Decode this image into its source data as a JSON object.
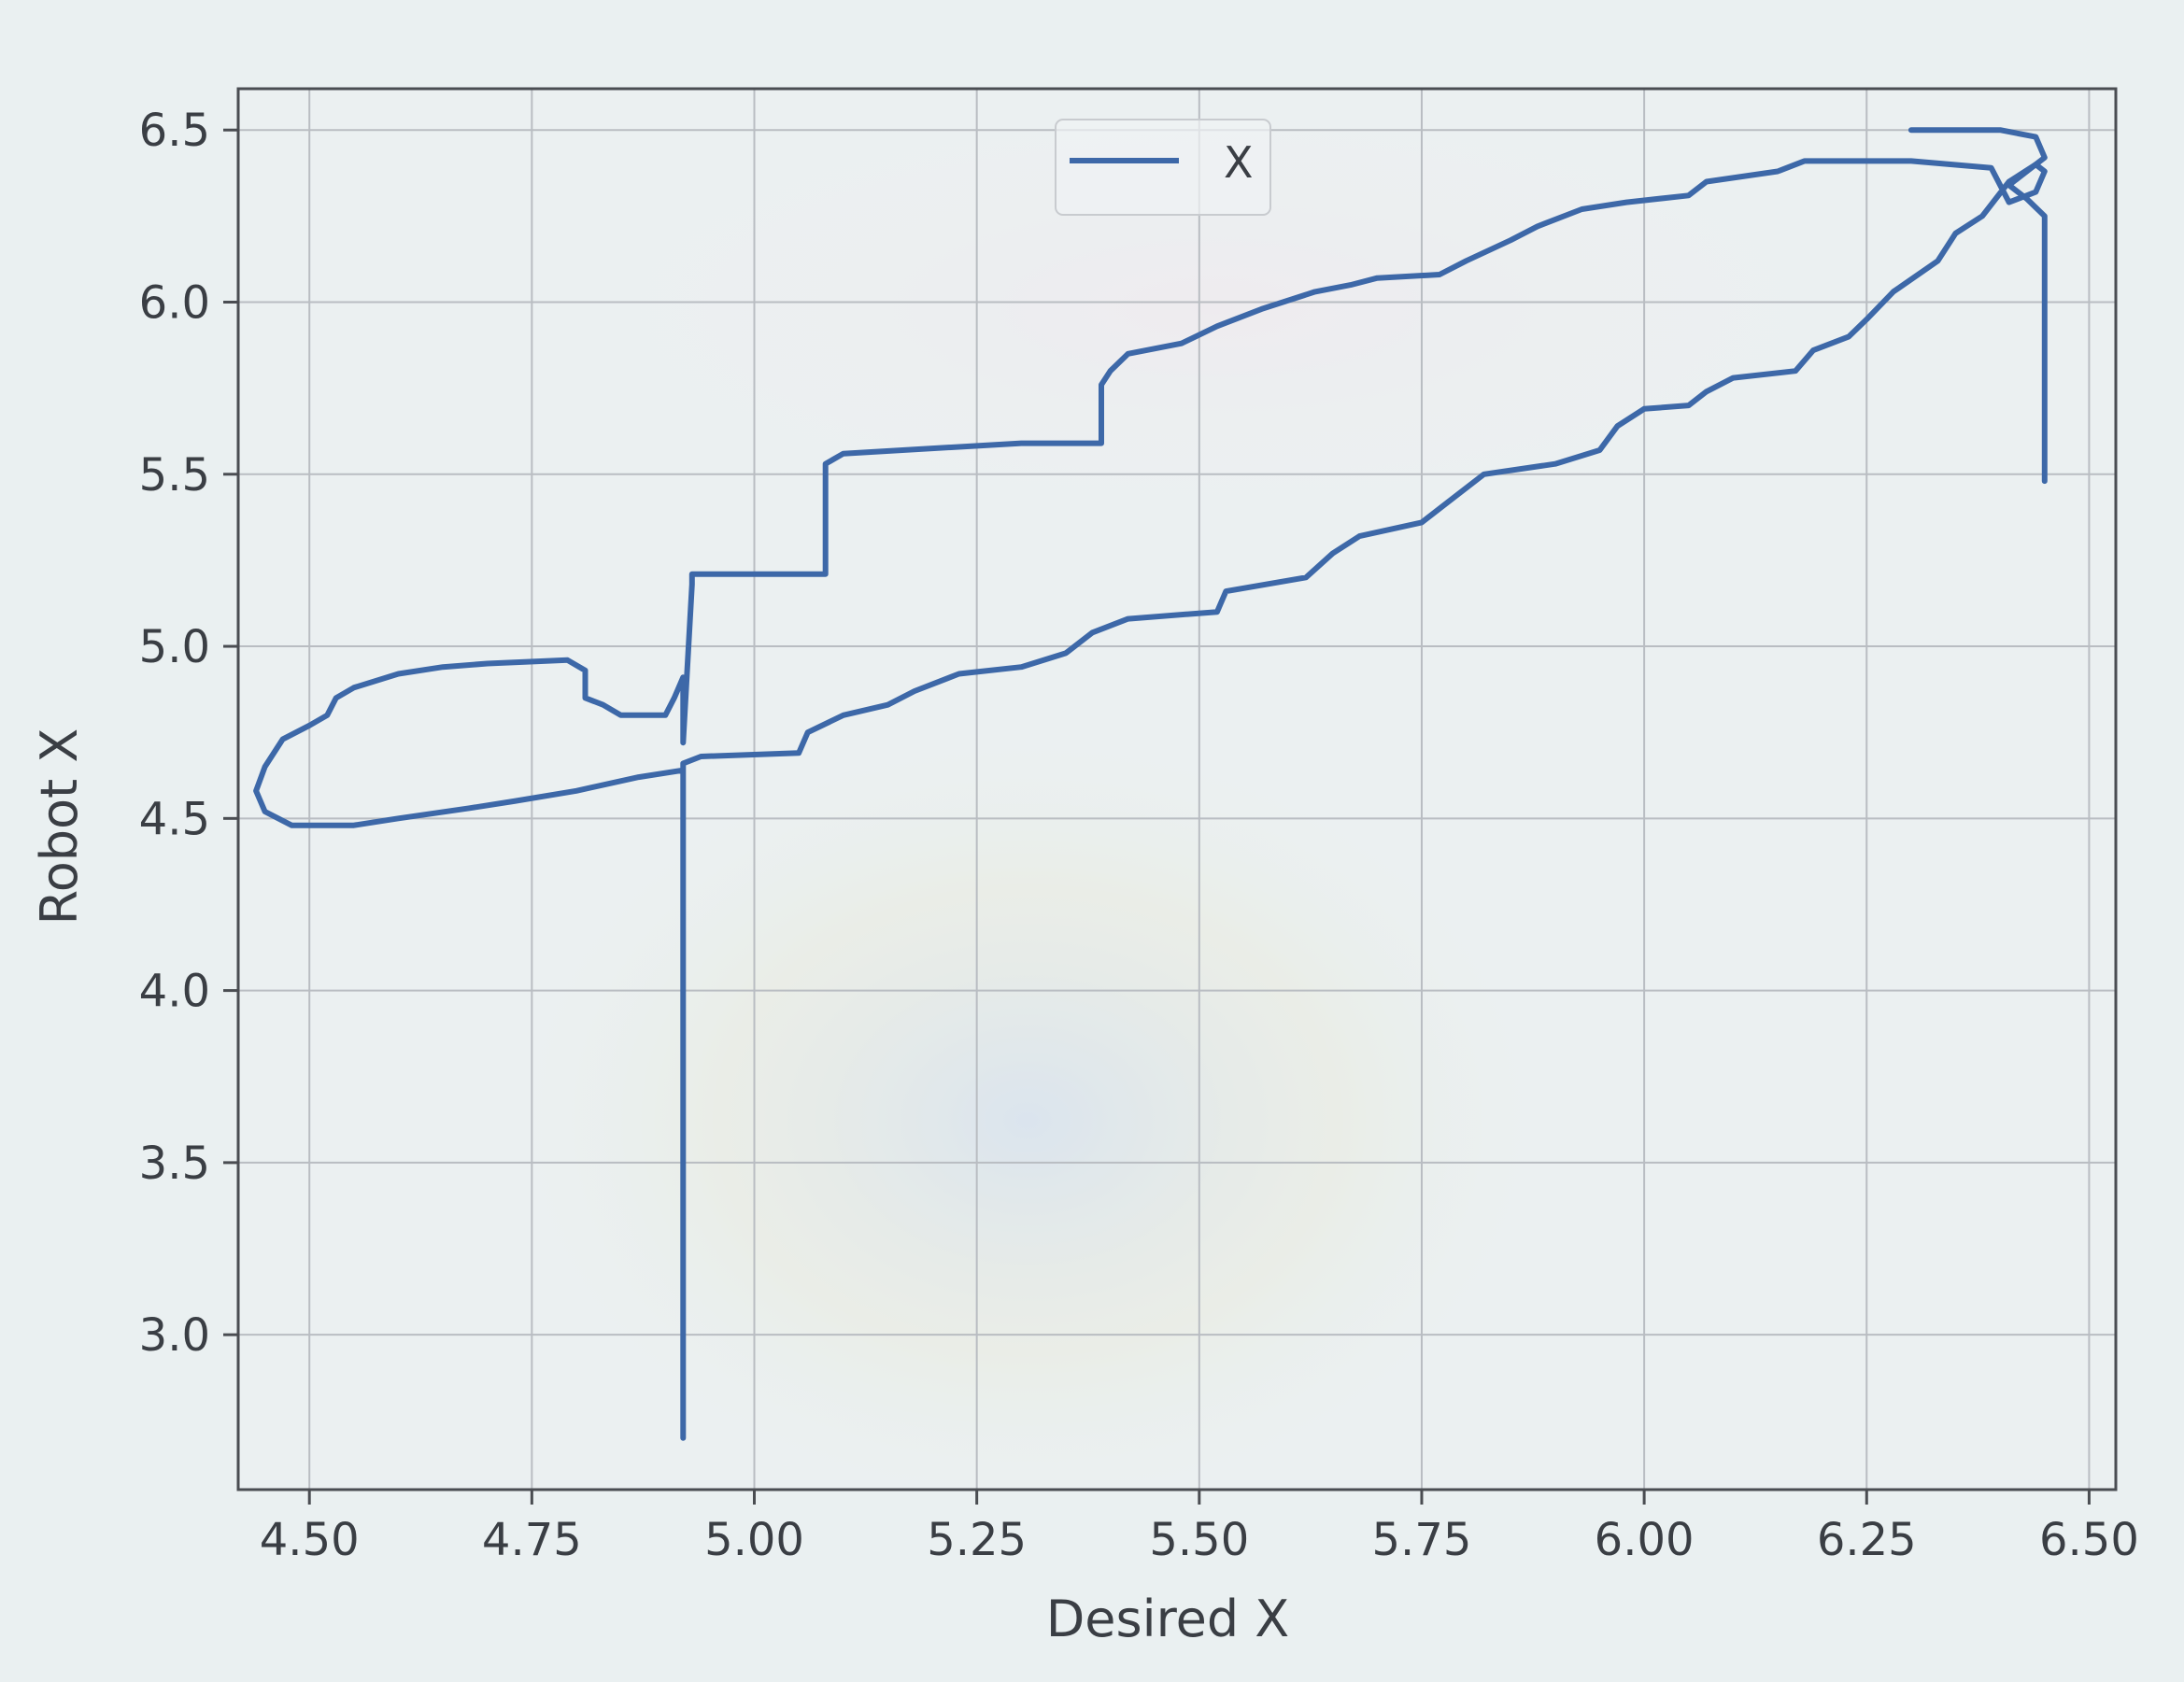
{
  "chart_data": {
    "type": "line",
    "title": "",
    "xlabel": "Desired X",
    "ylabel": "Robot X",
    "xlim": [
      4.42,
      6.53
    ],
    "ylim": [
      2.55,
      6.62
    ],
    "xticks": [
      "4.50",
      "4.75",
      "5.00",
      "5.25",
      "5.50",
      "5.75",
      "6.00",
      "6.25",
      "6.50"
    ],
    "yticks": [
      "3.0",
      "3.5",
      "4.0",
      "4.5",
      "5.0",
      "5.5",
      "6.0",
      "6.5"
    ],
    "grid": true,
    "legend_placement": "upper center",
    "colors": {
      "line": "#3d68a8",
      "grid": "#b9bdc2",
      "axes": "#4a4d52"
    },
    "series": [
      {
        "name": "X",
        "points": [
          [
            4.92,
            2.7
          ],
          [
            4.92,
            4.66
          ],
          [
            4.94,
            4.68
          ],
          [
            5.05,
            4.69
          ],
          [
            5.06,
            4.75
          ],
          [
            5.1,
            4.8
          ],
          [
            5.15,
            4.83
          ],
          [
            5.18,
            4.87
          ],
          [
            5.23,
            4.92
          ],
          [
            5.3,
            4.94
          ],
          [
            5.35,
            4.98
          ],
          [
            5.38,
            5.04
          ],
          [
            5.42,
            5.08
          ],
          [
            5.52,
            5.1
          ],
          [
            5.53,
            5.16
          ],
          [
            5.62,
            5.2
          ],
          [
            5.65,
            5.27
          ],
          [
            5.68,
            5.32
          ],
          [
            5.75,
            5.36
          ],
          [
            5.78,
            5.42
          ],
          [
            5.82,
            5.5
          ],
          [
            5.9,
            5.53
          ],
          [
            5.95,
            5.57
          ],
          [
            5.97,
            5.64
          ],
          [
            6.0,
            5.69
          ],
          [
            6.05,
            5.7
          ],
          [
            6.07,
            5.74
          ],
          [
            6.1,
            5.78
          ],
          [
            6.17,
            5.8
          ],
          [
            6.19,
            5.86
          ],
          [
            6.23,
            5.9
          ],
          [
            6.25,
            5.95
          ],
          [
            6.28,
            6.03
          ],
          [
            6.33,
            6.12
          ],
          [
            6.35,
            6.2
          ],
          [
            6.38,
            6.25
          ],
          [
            6.41,
            6.35
          ],
          [
            6.44,
            6.4
          ],
          [
            6.45,
            6.38
          ],
          [
            6.44,
            6.32
          ],
          [
            6.41,
            6.29
          ],
          [
            6.39,
            6.39
          ],
          [
            6.3,
            6.41
          ],
          [
            6.18,
            6.41
          ],
          [
            6.15,
            6.38
          ],
          [
            6.07,
            6.35
          ],
          [
            6.05,
            6.31
          ],
          [
            5.98,
            6.29
          ],
          [
            5.93,
            6.27
          ],
          [
            5.88,
            6.22
          ],
          [
            5.85,
            6.18
          ],
          [
            5.8,
            6.12
          ],
          [
            5.77,
            6.08
          ],
          [
            5.7,
            6.07
          ],
          [
            5.67,
            6.05
          ],
          [
            5.63,
            6.03
          ],
          [
            5.57,
            5.98
          ],
          [
            5.52,
            5.93
          ],
          [
            5.48,
            5.88
          ],
          [
            5.42,
            5.85
          ],
          [
            5.4,
            5.8
          ],
          [
            5.39,
            5.76
          ],
          [
            5.39,
            5.59
          ],
          [
            5.3,
            5.59
          ],
          [
            5.1,
            5.56
          ],
          [
            5.08,
            5.53
          ],
          [
            5.08,
            5.21
          ],
          [
            4.93,
            5.21
          ],
          [
            4.93,
            5.18
          ],
          [
            4.92,
            4.72
          ],
          [
            4.92,
            4.91
          ],
          [
            4.91,
            4.85
          ],
          [
            4.9,
            4.8
          ],
          [
            4.85,
            4.8
          ],
          [
            4.83,
            4.83
          ],
          [
            4.81,
            4.85
          ],
          [
            4.81,
            4.93
          ],
          [
            4.79,
            4.96
          ],
          [
            4.7,
            4.95
          ],
          [
            4.65,
            4.94
          ],
          [
            4.6,
            4.92
          ],
          [
            4.55,
            4.88
          ],
          [
            4.53,
            4.85
          ],
          [
            4.52,
            4.8
          ],
          [
            4.5,
            4.77
          ],
          [
            4.47,
            4.73
          ],
          [
            4.45,
            4.65
          ],
          [
            4.44,
            4.58
          ],
          [
            4.45,
            4.52
          ],
          [
            4.48,
            4.48
          ],
          [
            4.55,
            4.48
          ],
          [
            4.6,
            4.5
          ],
          [
            4.68,
            4.53
          ],
          [
            4.73,
            4.55
          ],
          [
            4.8,
            4.58
          ],
          [
            4.87,
            4.62
          ],
          [
            4.92,
            4.64
          ]
        ]
      }
    ],
    "extra_segments": [
      [
        [
          6.45,
          5.48
        ],
        [
          6.45,
          6.25
        ],
        [
          6.43,
          6.3
        ],
        [
          6.41,
          6.34
        ],
        [
          6.43,
          6.38
        ],
        [
          6.45,
          6.42
        ],
        [
          6.44,
          6.48
        ],
        [
          6.4,
          6.5
        ],
        [
          6.3,
          6.5
        ]
      ]
    ]
  }
}
